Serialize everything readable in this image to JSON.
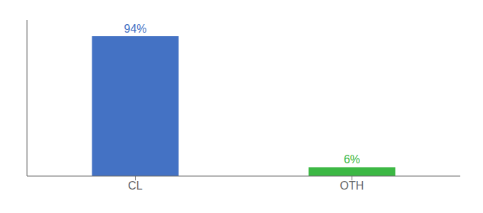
{
  "chart_data": {
    "type": "bar",
    "categories": [
      "CL",
      "OTH"
    ],
    "values": [
      94,
      6
    ],
    "value_labels": [
      "94%",
      "6%"
    ],
    "data_labels": true,
    "colors": [
      "#4472c4",
      "#3cb844"
    ],
    "ylim": [
      0,
      105
    ],
    "tick_labels": "x",
    "grid": false
  }
}
